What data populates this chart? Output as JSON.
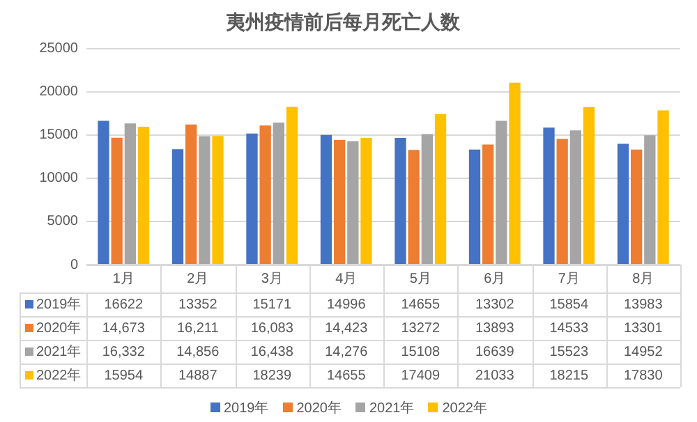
{
  "chart_data": {
    "type": "bar",
    "title": "夷州疫情前后每月死亡人数",
    "categories": [
      "1月",
      "2月",
      "3月",
      "4月",
      "5月",
      "6月",
      "7月",
      "8月"
    ],
    "series": [
      {
        "name": "2019年",
        "color": "#4472c4",
        "values": [
          16622,
          13352,
          15171,
          14996,
          14655,
          13302,
          15854,
          13983
        ],
        "value_labels": [
          "16622",
          "13352",
          "15171",
          "14996",
          "14655",
          "13302",
          "15854",
          "13983"
        ]
      },
      {
        "name": "2020年",
        "color": "#ed7d31",
        "values": [
          14673,
          16211,
          16083,
          14423,
          13272,
          13893,
          14533,
          13301
        ],
        "value_labels": [
          "14,673",
          "16,211",
          "16,083",
          "14,423",
          "13272",
          "13893",
          "14533",
          "13301"
        ]
      },
      {
        "name": "2021年",
        "color": "#a5a5a5",
        "values": [
          16332,
          14856,
          16438,
          14276,
          15108,
          16639,
          15523,
          14952
        ],
        "value_labels": [
          "16,332",
          "14,856",
          "16,438",
          "14,276",
          "15108",
          "16639",
          "15523",
          "14952"
        ]
      },
      {
        "name": "2022年",
        "color": "#ffc000",
        "values": [
          15954,
          14887,
          18239,
          14655,
          17409,
          21033,
          18215,
          17830
        ],
        "value_labels": [
          "15954",
          "14887",
          "18239",
          "14655",
          "17409",
          "21033",
          "18215",
          "17830"
        ]
      }
    ],
    "ylim": [
      0,
      25000
    ],
    "yticks": [
      0,
      5000,
      10000,
      15000,
      20000,
      25000
    ],
    "grid": "y",
    "legend": "bottom"
  }
}
